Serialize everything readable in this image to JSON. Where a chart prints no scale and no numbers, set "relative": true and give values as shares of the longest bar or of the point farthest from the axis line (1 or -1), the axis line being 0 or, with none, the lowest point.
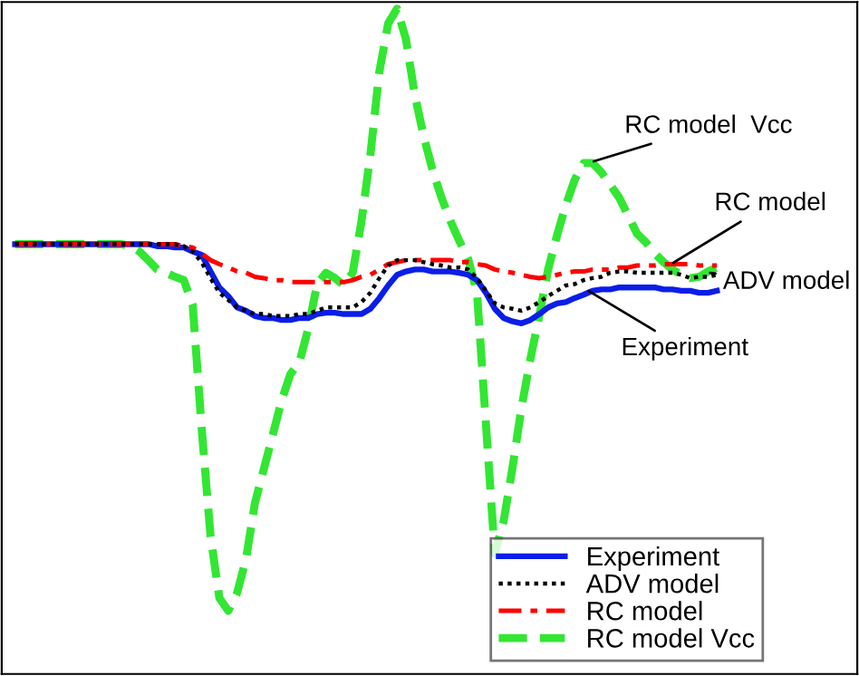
{
  "chart_data": {
    "type": "line",
    "relative": true,
    "grid": false,
    "legend": "bottom right",
    "marker": "none",
    "categories": [
      null,
      null,
      null,
      null,
      null,
      null,
      null,
      null,
      null,
      null,
      null,
      null,
      null,
      null,
      null,
      null,
      null,
      null,
      null,
      null,
      null,
      null,
      null,
      null,
      null,
      null,
      null,
      null,
      null,
      null,
      null,
      null,
      null,
      null,
      null,
      null,
      null,
      null,
      null,
      null,
      null,
      null,
      null,
      null,
      null,
      null,
      null,
      null,
      null,
      null,
      null,
      null,
      null,
      null,
      null,
      null,
      null,
      null,
      null,
      null,
      null,
      null,
      null,
      null,
      null,
      null,
      null,
      null,
      null,
      null,
      null,
      null,
      null,
      null,
      null,
      null,
      null,
      null,
      null,
      null
    ],
    "series": [
      {
        "name": "Experiment",
        "color": "#0a1ee8",
        "line_style": "solid",
        "values": [
          0.646,
          0.646,
          0.646,
          0.646,
          0.646,
          0.646,
          0.646,
          0.646,
          0.646,
          0.646,
          0.646,
          0.646,
          0.646,
          0.646,
          0.646,
          0.646,
          0.643,
          0.643,
          0.641,
          0.641,
          0.635,
          0.63,
          0.605,
          0.581,
          0.568,
          0.551,
          0.546,
          0.538,
          0.535,
          0.535,
          0.532,
          0.532,
          0.535,
          0.535,
          0.541,
          0.543,
          0.543,
          0.541,
          0.541,
          0.541,
          0.549,
          0.565,
          0.584,
          0.6,
          0.605,
          0.608,
          0.608,
          0.605,
          0.605,
          0.605,
          0.603,
          0.6,
          0.592,
          0.573,
          0.549,
          0.535,
          0.53,
          0.527,
          0.532,
          0.541,
          0.551,
          0.557,
          0.559,
          0.565,
          0.57,
          0.576,
          0.578,
          0.578,
          0.581,
          0.581,
          0.581,
          0.581,
          0.581,
          0.578,
          0.578,
          0.576,
          0.576,
          0.573,
          0.573,
          0.576
        ]
      },
      {
        "name": "ADV model",
        "color": "#000000",
        "line_style": "dotted",
        "values": [
          0.646,
          0.646,
          0.646,
          0.646,
          0.646,
          0.646,
          0.646,
          0.646,
          0.646,
          0.646,
          0.646,
          0.646,
          0.646,
          0.646,
          0.646,
          0.646,
          0.646,
          0.646,
          0.646,
          0.643,
          0.635,
          0.619,
          0.595,
          0.573,
          0.562,
          0.551,
          0.546,
          0.541,
          0.541,
          0.538,
          0.538,
          0.538,
          0.541,
          0.541,
          0.546,
          0.551,
          0.551,
          0.551,
          0.551,
          0.559,
          0.573,
          0.595,
          0.614,
          0.622,
          0.622,
          0.622,
          0.619,
          0.616,
          0.614,
          0.611,
          0.611,
          0.608,
          0.595,
          0.576,
          0.557,
          0.551,
          0.549,
          0.546,
          0.551,
          0.559,
          0.568,
          0.576,
          0.584,
          0.586,
          0.592,
          0.595,
          0.597,
          0.603,
          0.605,
          0.605,
          0.603,
          0.603,
          0.603,
          0.603,
          0.603,
          0.6,
          0.595,
          0.597,
          0.597,
          0.6
        ]
      },
      {
        "name": "RC model",
        "color": "#ff0000",
        "line_style": "dashdot",
        "values": [
          0.646,
          0.646,
          0.646,
          0.646,
          0.646,
          0.646,
          0.646,
          0.646,
          0.646,
          0.646,
          0.646,
          0.646,
          0.646,
          0.646,
          0.646,
          0.646,
          0.646,
          0.646,
          0.646,
          0.643,
          0.641,
          0.632,
          0.622,
          0.616,
          0.611,
          0.605,
          0.603,
          0.597,
          0.595,
          0.592,
          0.592,
          0.589,
          0.589,
          0.589,
          0.589,
          0.589,
          0.589,
          0.589,
          0.592,
          0.597,
          0.6,
          0.608,
          0.616,
          0.619,
          0.622,
          0.622,
          0.622,
          0.622,
          0.622,
          0.622,
          0.619,
          0.619,
          0.616,
          0.614,
          0.608,
          0.605,
          0.603,
          0.6,
          0.597,
          0.595,
          0.597,
          0.6,
          0.603,
          0.605,
          0.605,
          0.608,
          0.608,
          0.608,
          0.611,
          0.611,
          0.614,
          0.614,
          0.614,
          0.616,
          0.616,
          0.616,
          0.616,
          0.614,
          0.614,
          0.614
        ]
      },
      {
        "name": "RC model Vcc",
        "color": "#33e633",
        "line_style": "dashed",
        "values": [
          0.646,
          0.646,
          0.646,
          0.646,
          0.646,
          0.646,
          0.646,
          0.646,
          0.646,
          0.646,
          0.646,
          0.646,
          0.646,
          0.643,
          0.635,
          0.622,
          0.608,
          0.603,
          0.597,
          0.592,
          0.554,
          0.37,
          0.208,
          0.114,
          0.095,
          0.122,
          0.173,
          0.257,
          0.308,
          0.359,
          0.411,
          0.451,
          0.468,
          0.519,
          0.586,
          0.603,
          0.595,
          0.584,
          0.603,
          0.681,
          0.781,
          0.905,
          0.978,
          1,
          0.954,
          0.87,
          0.808,
          0.757,
          0.716,
          0.681,
          0.651,
          0.624,
          0.573,
          0.376,
          0.181,
          0.23,
          0.311,
          0.4,
          0.473,
          0.538,
          0.608,
          0.659,
          0.705,
          0.743,
          0.768,
          0.768,
          0.754,
          0.735,
          0.716,
          0.689,
          0.662,
          0.649,
          0.632,
          0.619,
          0.608,
          0.6,
          0.595,
          0.597,
          0.605,
          0.611
        ]
      }
    ],
    "annotations": [
      "RC model  Vcc",
      "RC model",
      "ADV model",
      "Experiment"
    ]
  }
}
